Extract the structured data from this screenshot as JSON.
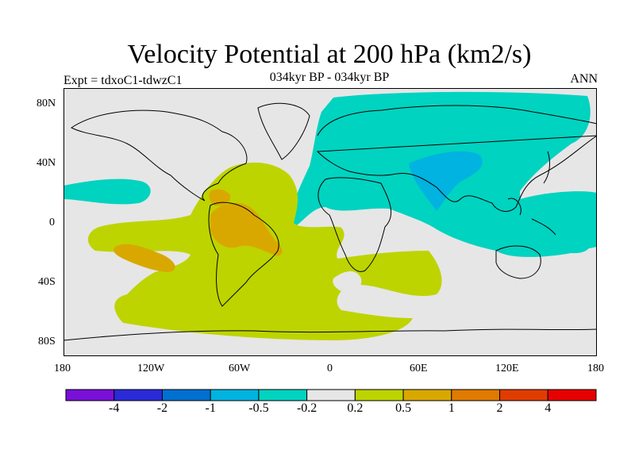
{
  "title": "Velocity Potential at 200 hPa (km2/s)",
  "subtitle": "034kyr BP - 034kyr BP",
  "left_label": "Expt = tdxoC1-tdwzC1",
  "right_label": "ANN",
  "lat_ticks": [
    "80N",
    "40N",
    "0",
    "40S",
    "80S"
  ],
  "lon_ticks": [
    "180",
    "120W",
    "60W",
    "0",
    "60E",
    "120E",
    "180"
  ],
  "colors": {
    "background": "#e6e6e6",
    "negative_mid": "#00d3c0",
    "negative_strong": "#00b3e0",
    "positive_light": "#bdd400",
    "positive_mid": "#d9a800"
  },
  "colorbar": {
    "colors": [
      "#7a10d8",
      "#2a2ad8",
      "#0070d0",
      "#00b3e0",
      "#00d3c0",
      "#e6e6e6",
      "#bdd400",
      "#d9a800",
      "#e07a00",
      "#e03c00",
      "#e80000"
    ],
    "labels": [
      "-4",
      "-2",
      "-1",
      "-0.5",
      "-0.2",
      "0.2",
      "0.5",
      "1",
      "2",
      "4"
    ]
  }
}
